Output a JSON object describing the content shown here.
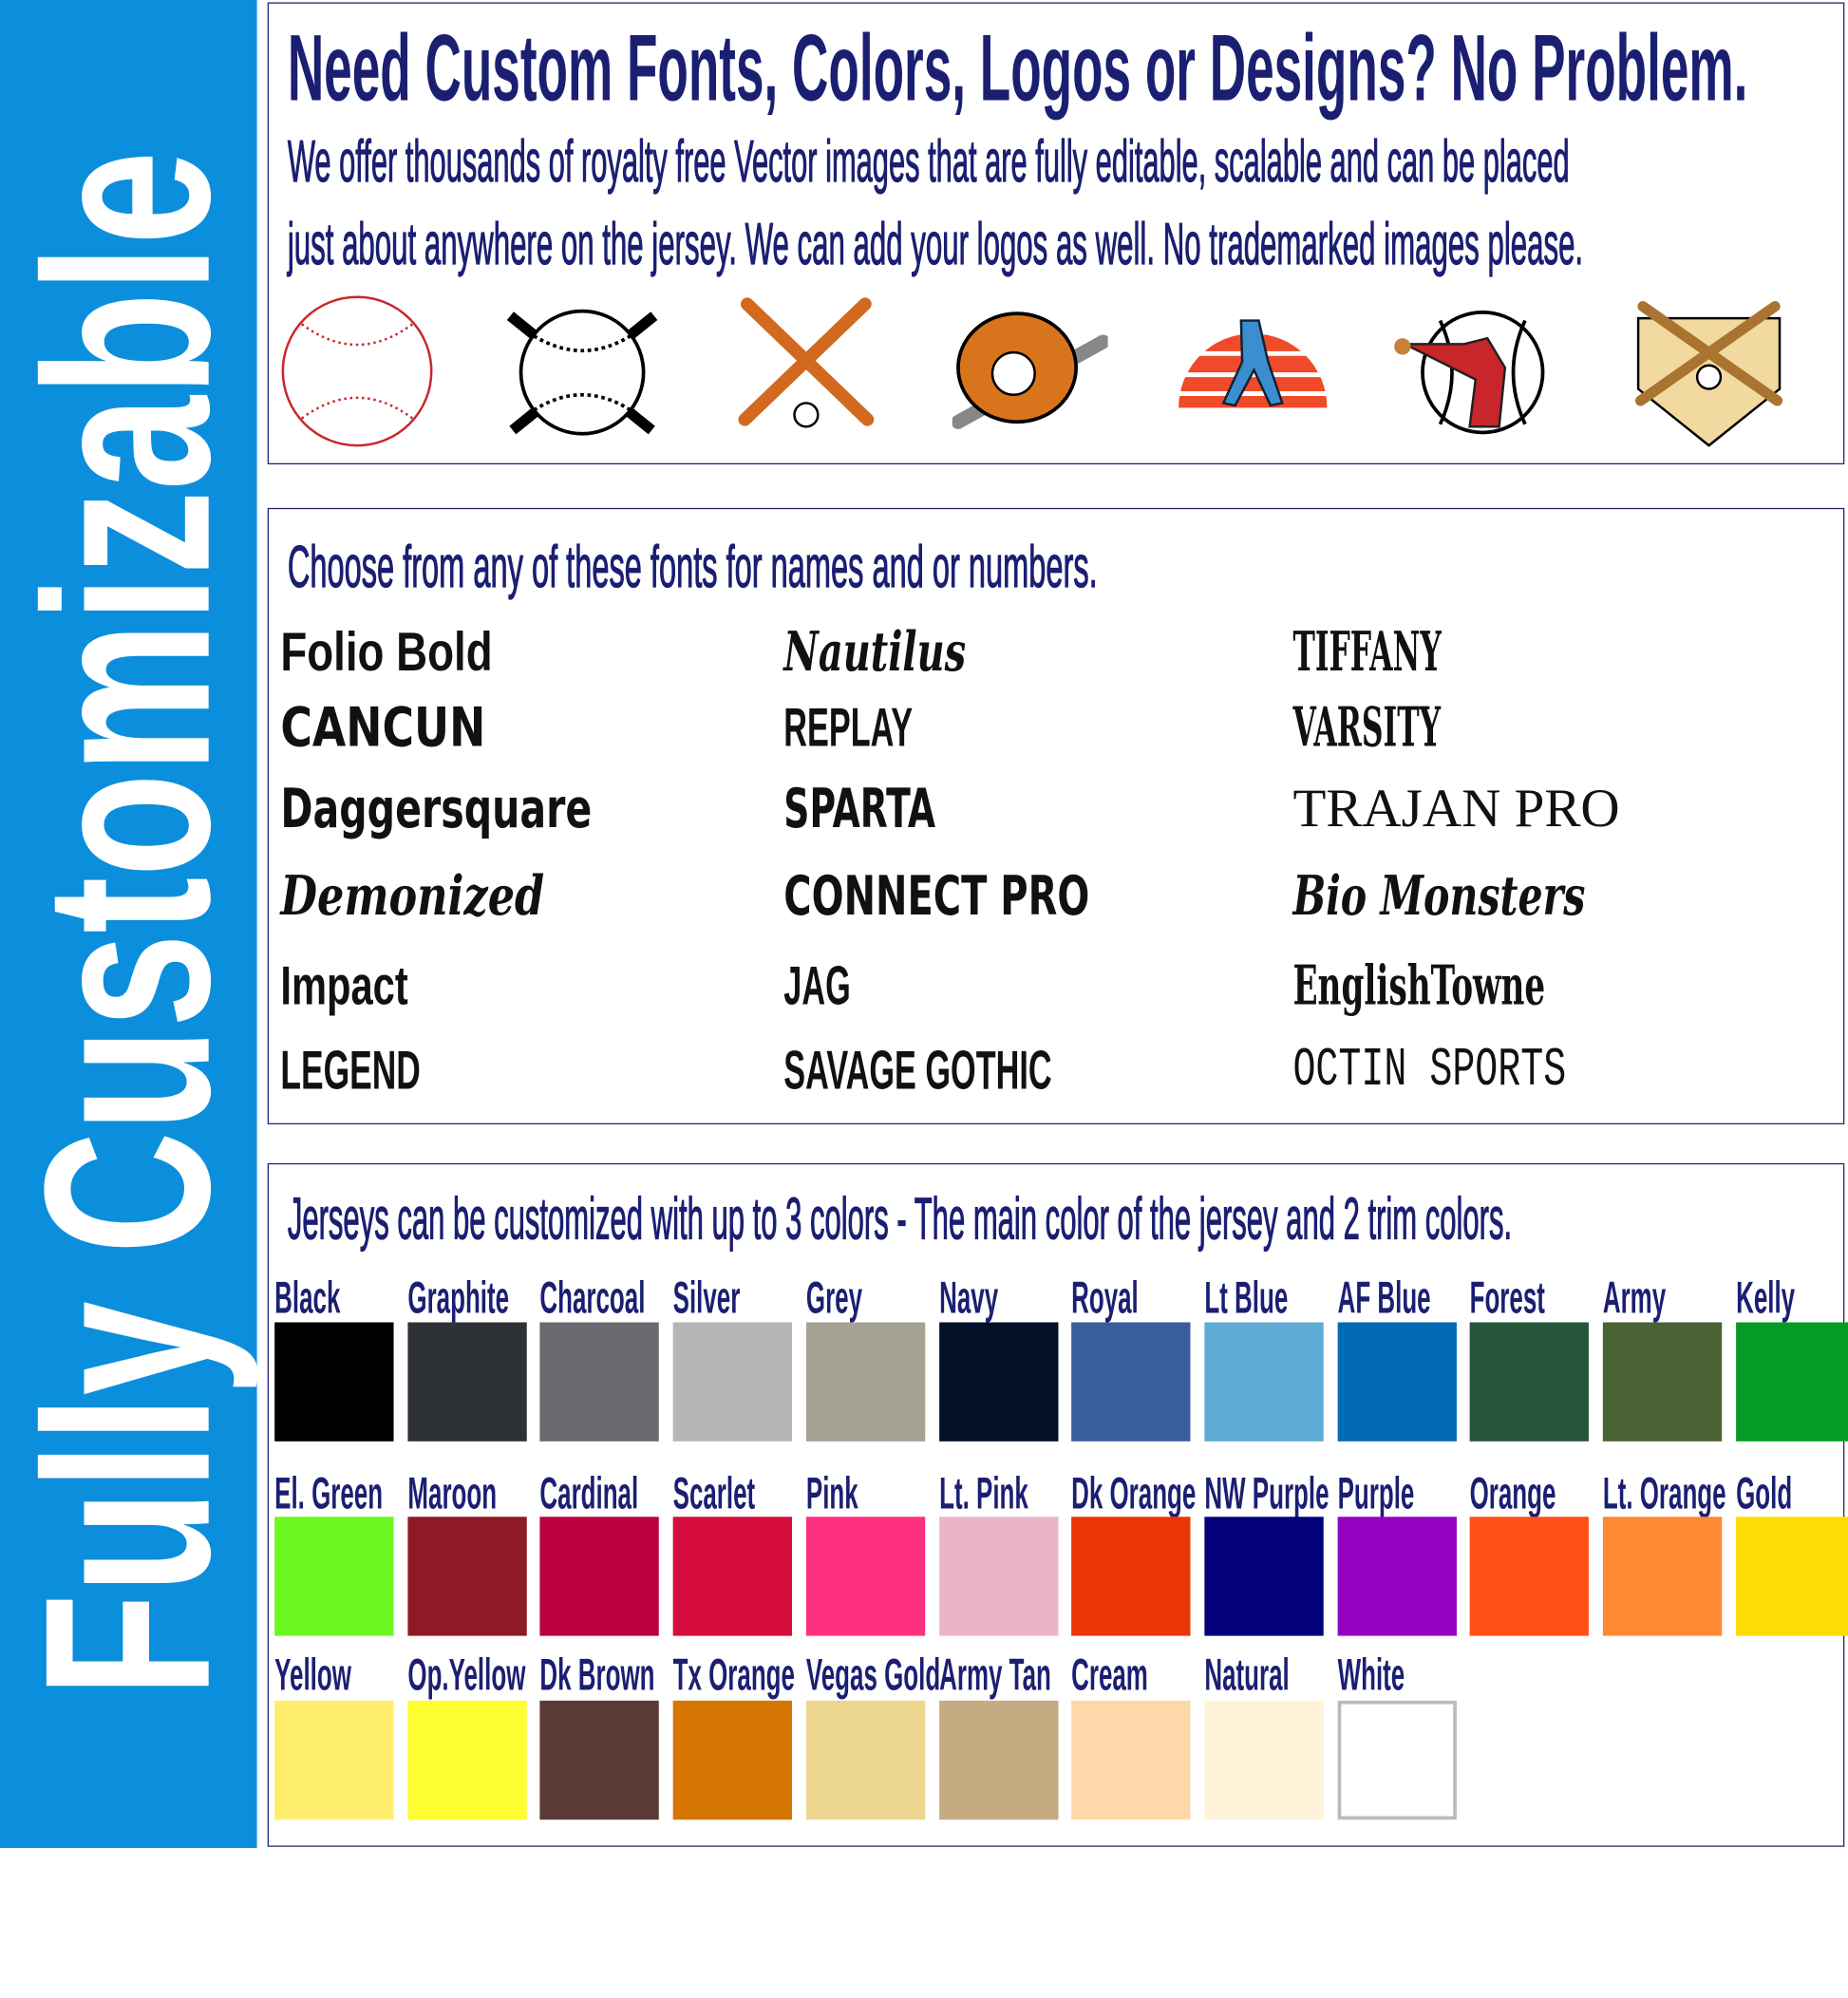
{
  "sidebar": {
    "title": "Fully Customizable",
    "color": "#0b8fdc"
  },
  "section1": {
    "headline": "Need Custom Fonts, Colors, Logos or Designs? No Problem.",
    "line1": "We offer thousands of royalty free Vector images that are fully editable, scalable and can be placed",
    "line2": "just about anywhere on the jersey.  We can add your logos as well.  No trademarked images please.",
    "icons": [
      "baseball-icon",
      "crossed-bats-ball-icon",
      "crossed-wooden-bats-icon",
      "glove-bat-icon",
      "batter-sunset-icon",
      "pitcher-icon",
      "home-plate-bats-icon"
    ]
  },
  "section2": {
    "heading": "Choose from any of these fonts for names and or numbers.",
    "fonts": [
      [
        "Folio Bold",
        "CANCUN",
        "Daggersquare",
        "Demonized",
        "Impact",
        "LEGEND"
      ],
      [
        "Nautilus",
        "REPLAY",
        "SPARTA",
        "CONNECT PRO",
        "JAG",
        "SAVAGE GOTHIC"
      ],
      [
        "TIFFANY",
        "VARSITY",
        "TRAJAN PRO",
        "Bio Monsters",
        "EnglishTowne",
        "OCTIN SPORTS"
      ]
    ]
  },
  "section3": {
    "heading": "Jerseys can be customized with up to 3 colors - The main color of the jersey and 2 trim colors.",
    "rows": [
      [
        {
          "name": "Black",
          "hex": "#000000"
        },
        {
          "name": "Graphite",
          "hex": "#2e3236"
        },
        {
          "name": "Charcoal",
          "hex": "#6a6a6e"
        },
        {
          "name": "Silver",
          "hex": "#b5b5b5"
        },
        {
          "name": "Grey",
          "hex": "#a5a293"
        },
        {
          "name": "Navy",
          "hex": "#021127"
        },
        {
          "name": "Royal",
          "hex": "#3a5e9c"
        },
        {
          "name": "Lt Blue",
          "hex": "#5fabd6"
        },
        {
          "name": "AF Blue",
          "hex": "#026bb6"
        },
        {
          "name": "Forest",
          "hex": "#27553a"
        },
        {
          "name": "Army",
          "hex": "#4a6334"
        },
        {
          "name": "Kelly",
          "hex": "#049c25"
        }
      ],
      [
        {
          "name": "El. Green",
          "hex": "#6cf71f"
        },
        {
          "name": "Maroon",
          "hex": "#8e1a26"
        },
        {
          "name": "Cardinal",
          "hex": "#bb0041"
        },
        {
          "name": "Scarlet",
          "hex": "#d50d3c"
        },
        {
          "name": "Pink",
          "hex": "#fe2f7f"
        },
        {
          "name": "Lt. Pink",
          "hex": "#ebb5c8"
        },
        {
          "name": "Dk Orange",
          "hex": "#ea3604"
        },
        {
          "name": "NW Purple",
          "hex": "#02007a"
        },
        {
          "name": "Purple",
          "hex": "#9502c4"
        },
        {
          "name": "Orange",
          "hex": "#fd4f16"
        },
        {
          "name": "Lt. Orange",
          "hex": "#fd8935"
        },
        {
          "name": "Gold",
          "hex": "#fedc03"
        }
      ],
      [
        {
          "name": "Yellow",
          "hex": "#ffed6e"
        },
        {
          "name": "Op.Yellow",
          "hex": "#fefe33"
        },
        {
          "name": "Dk Brown",
          "hex": "#5b3a35"
        },
        {
          "name": "Tx Orange",
          "hex": "#d47601"
        },
        {
          "name": "Vegas Gold",
          "hex": "#ebd58f"
        },
        {
          "name": "Army Tan",
          "hex": "#c4ab82"
        },
        {
          "name": "Cream",
          "hex": "#fed8a8"
        },
        {
          "name": "Natural",
          "hex": "#fef3d9"
        },
        {
          "name": "White",
          "hex": "#ffffff"
        }
      ]
    ]
  },
  "text_color": "#1b1f72"
}
